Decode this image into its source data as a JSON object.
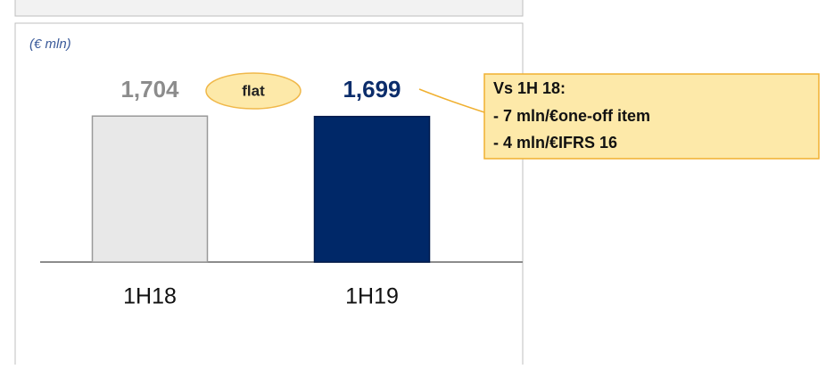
{
  "chart_data": {
    "type": "bar",
    "unit_label": "(€ mln)",
    "categories": [
      "1H18",
      "1H19"
    ],
    "values": [
      1704,
      1699
    ],
    "value_labels": [
      "1,704",
      "1,699"
    ],
    "colors": [
      "#e8e8e8",
      "#002868"
    ],
    "label_colors": [
      "#8c8c8c",
      "#0c2d6b"
    ],
    "ylim": [
      0,
      1800
    ],
    "badge": "flat",
    "callout": {
      "title": "Vs 1H 18:",
      "lines": [
        "- 7 mln/€one-off item",
        "- 4 mln/€IFRS 16"
      ]
    }
  }
}
